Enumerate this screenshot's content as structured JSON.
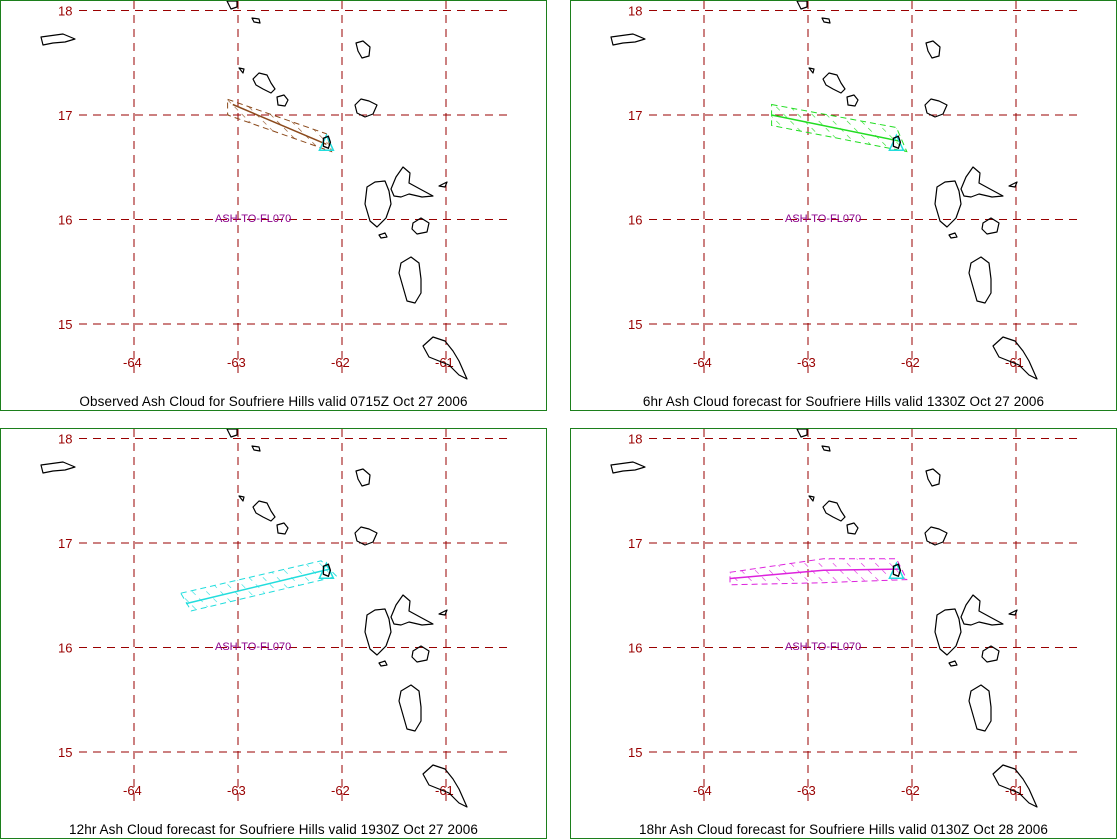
{
  "panels": [
    {
      "caption": "Observed Ash Cloud for Soufriere  Hills valid 0715Z Oct 27 2006",
      "label": "ASH-TO-FL070",
      "color": "#8b4a1c",
      "cloud_polygon": [
        [
          -63.1,
          17.15
        ],
        [
          -62.15,
          16.82
        ],
        [
          -62.1,
          16.65
        ],
        [
          -63.1,
          17.0
        ]
      ],
      "cloud_centerline": [
        [
          -63.05,
          17.1
        ],
        [
          -62.15,
          16.72
        ]
      ]
    },
    {
      "caption": "6hr Ash Cloud forecast for Soufriere  Hills valid 1330Z Oct 27 2006",
      "label": "ASH-TO-FL070",
      "color": "#22dd22",
      "cloud_polygon": [
        [
          -63.35,
          17.1
        ],
        [
          -62.15,
          16.88
        ],
        [
          -62.05,
          16.65
        ],
        [
          -63.35,
          16.9
        ]
      ],
      "cloud_centerline": [
        [
          -63.35,
          17.0
        ],
        [
          -62.12,
          16.75
        ]
      ]
    },
    {
      "caption": "12hr Ash Cloud forecast for Soufriere  Hills valid 1930Z Oct 27 2006",
      "label": "ASH-TO-FL070",
      "color": "#22dddd",
      "cloud_polygon": [
        [
          -63.55,
          16.52
        ],
        [
          -62.2,
          16.83
        ],
        [
          -62.05,
          16.68
        ],
        [
          -63.45,
          16.35
        ]
      ],
      "cloud_centerline": [
        [
          -63.5,
          16.42
        ],
        [
          -62.12,
          16.75
        ]
      ]
    },
    {
      "caption": "18hr Ash Cloud forecast for Soufriere  Hills valid 0130Z Oct 28 2006",
      "label": "ASH-TO-FL070",
      "color": "#dd22dd",
      "cloud_polygon": [
        [
          -63.75,
          16.72
        ],
        [
          -62.85,
          16.85
        ],
        [
          -62.15,
          16.85
        ],
        [
          -62.05,
          16.65
        ],
        [
          -62.85,
          16.62
        ],
        [
          -63.75,
          16.6
        ]
      ],
      "cloud_centerline": [
        [
          -63.75,
          16.66
        ],
        [
          -62.85,
          16.74
        ],
        [
          -62.12,
          16.75
        ]
      ]
    }
  ],
  "axes": {
    "lat_ticks": [
      "18",
      "17",
      "16",
      "15"
    ],
    "lon_ticks": [
      "-64",
      "-63",
      "-62",
      "-61"
    ],
    "grid_color": "#990000",
    "coast_color": "#000000",
    "frame_color": "#1c7f1c"
  },
  "vent_color": "#22dddd"
}
